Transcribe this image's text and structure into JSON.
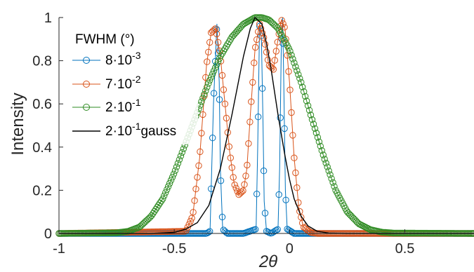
{
  "chart_data": {
    "type": "line",
    "xlabel": "2θ",
    "ylabel": "Intensity",
    "xlim": [
      -1,
      0.8
    ],
    "ylim": [
      0,
      1
    ],
    "x_ticks": [
      "-1",
      "-0.5",
      "0",
      "0.5"
    ],
    "x_tick_values": [
      -1,
      -0.5,
      0,
      0.5
    ],
    "y_ticks": [
      "0",
      "0.2",
      "0.4",
      "0.6",
      "0.8",
      "1"
    ],
    "y_tick_values": [
      0,
      0.2,
      0.4,
      0.6,
      0.8,
      1
    ],
    "grid": false,
    "legend": {
      "title": "FWHM (°)",
      "position": "top-left",
      "entries": [
        {
          "base": "8·10",
          "exp": "-3",
          "suffix": ""
        },
        {
          "base": "7·10",
          "exp": "-2",
          "suffix": ""
        },
        {
          "base": "2·10",
          "exp": "-1",
          "suffix": ""
        },
        {
          "base": "2·10",
          "exp": "-1",
          "suffix": "gauss"
        }
      ]
    },
    "series": [
      {
        "marker": "circle",
        "line": true,
        "color": "#0072BD",
        "x": [
          -1.0,
          -0.36,
          -0.345,
          -0.33,
          -0.315,
          -0.305,
          -0.3,
          -0.29,
          -0.27,
          -0.2,
          -0.145,
          -0.138,
          -0.13,
          -0.122,
          -0.115,
          -0.11,
          -0.1,
          -0.08,
          -0.05,
          -0.043,
          -0.036,
          -0.03,
          -0.025,
          -0.018,
          -0.01,
          0.02,
          0.8
        ],
        "y": [
          0.0,
          0.0,
          0.01,
          0.6,
          0.97,
          0.7,
          0.3,
          0.02,
          0.0,
          0.0,
          0.02,
          0.4,
          0.96,
          0.9,
          0.5,
          0.15,
          0.01,
          0.0,
          0.02,
          0.3,
          0.85,
          1.0,
          0.7,
          0.2,
          0.02,
          0.0,
          0.0
        ]
      },
      {
        "marker": "circle",
        "line": true,
        "color": "#D95319",
        "x": [
          -1.0,
          -0.45,
          -0.42,
          -0.39,
          -0.36,
          -0.34,
          -0.32,
          -0.3,
          -0.28,
          -0.26,
          -0.24,
          -0.22,
          -0.2,
          -0.185,
          -0.17,
          -0.15,
          -0.13,
          -0.11,
          -0.09,
          -0.07,
          -0.05,
          -0.035,
          -0.02,
          0.0,
          0.02,
          0.04,
          0.06,
          0.09,
          0.12,
          0.8
        ],
        "y": [
          0.0,
          0.01,
          0.08,
          0.35,
          0.78,
          0.93,
          0.95,
          0.82,
          0.6,
          0.38,
          0.23,
          0.18,
          0.2,
          0.3,
          0.55,
          0.85,
          0.97,
          0.9,
          0.78,
          0.76,
          0.9,
          0.99,
          0.95,
          0.7,
          0.35,
          0.12,
          0.03,
          0.005,
          0.0,
          0.0
        ]
      },
      {
        "marker": "circle",
        "line": true,
        "color": "#2E8B22",
        "x": [
          -1.0,
          -0.75,
          -0.7,
          -0.65,
          -0.6,
          -0.55,
          -0.5,
          -0.45,
          -0.4,
          -0.35,
          -0.3,
          -0.25,
          -0.2,
          -0.15,
          -0.12,
          -0.09,
          -0.05,
          0.0,
          0.05,
          0.1,
          0.15,
          0.2,
          0.25,
          0.3,
          0.35,
          0.4,
          0.45,
          0.8
        ],
        "y": [
          0.0,
          0.003,
          0.01,
          0.03,
          0.08,
          0.16,
          0.28,
          0.42,
          0.56,
          0.7,
          0.82,
          0.91,
          0.97,
          1.0,
          1.0,
          0.99,
          0.95,
          0.85,
          0.7,
          0.52,
          0.35,
          0.2,
          0.1,
          0.045,
          0.018,
          0.006,
          0.002,
          0.0
        ]
      },
      {
        "marker": "none",
        "line": true,
        "color": "#000000",
        "x": [
          -1.0,
          -0.6,
          -0.5,
          -0.45,
          -0.4,
          -0.35,
          -0.3,
          -0.25,
          -0.2,
          -0.17,
          -0.15,
          -0.12,
          -0.1,
          -0.08,
          -0.05,
          -0.02,
          0.0,
          0.02,
          0.05,
          0.08,
          0.12,
          0.17,
          0.25,
          0.8
        ],
        "y": [
          0.0,
          0.0,
          0.005,
          0.02,
          0.05,
          0.13,
          0.3,
          0.55,
          0.82,
          0.95,
          1.0,
          0.97,
          0.88,
          0.76,
          0.55,
          0.36,
          0.25,
          0.16,
          0.08,
          0.035,
          0.01,
          0.002,
          0.0,
          0.0
        ]
      }
    ]
  }
}
